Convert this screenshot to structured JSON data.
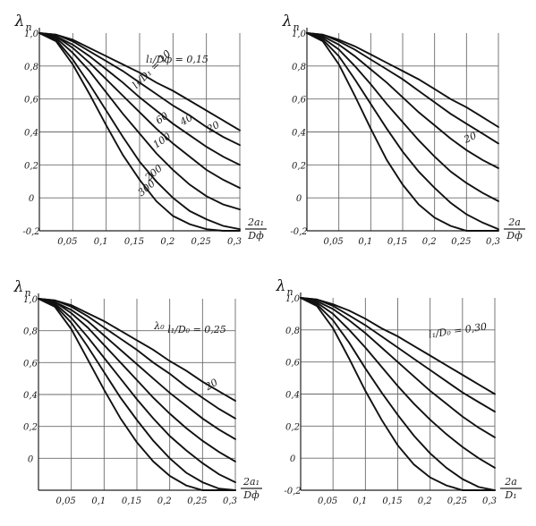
{
  "chart_data": [
    {
      "type": "line",
      "ylabel": "λ",
      "ylabel_sub": "п",
      "x_ticks": [
        "0,05",
        "0,1",
        "0,15",
        "0,2",
        "0,25",
        "0,3"
      ],
      "y_ticks": [
        "1,0",
        "0,8",
        "0,6",
        "0,4",
        "0,2",
        "0",
        "-0,2"
      ],
      "xlim": [
        0,
        0.3
      ],
      "ylim": [
        -0.2,
        1.0
      ],
      "grid": true,
      "xlabel_num": "2a₁",
      "xlabel_den": "Dф",
      "annotations": [
        "l₁/Dф = 0,15",
        "l₁/D₁ = 10",
        "20",
        "40",
        "60",
        "100",
        "200",
        "300"
      ],
      "series": [
        {
          "name": "10",
          "x": [
            0,
            0.025,
            0.05,
            0.075,
            0.1,
            0.125,
            0.15,
            0.175,
            0.2,
            0.225,
            0.25,
            0.275,
            0.3
          ],
          "y": [
            1.0,
            0.99,
            0.96,
            0.91,
            0.86,
            0.81,
            0.76,
            0.7,
            0.65,
            0.59,
            0.53,
            0.47,
            0.41
          ]
        },
        {
          "name": "20",
          "x": [
            0,
            0.025,
            0.05,
            0.075,
            0.1,
            0.125,
            0.15,
            0.175,
            0.2,
            0.225,
            0.25,
            0.275,
            0.3
          ],
          "y": [
            1.0,
            0.99,
            0.95,
            0.89,
            0.83,
            0.77,
            0.7,
            0.63,
            0.56,
            0.5,
            0.43,
            0.37,
            0.32
          ]
        },
        {
          "name": "40",
          "x": [
            0,
            0.025,
            0.05,
            0.075,
            0.1,
            0.125,
            0.15,
            0.175,
            0.2,
            0.225,
            0.25,
            0.275,
            0.3
          ],
          "y": [
            1.0,
            0.98,
            0.93,
            0.86,
            0.78,
            0.7,
            0.61,
            0.53,
            0.45,
            0.38,
            0.31,
            0.25,
            0.2
          ]
        },
        {
          "name": "60",
          "x": [
            0,
            0.025,
            0.05,
            0.075,
            0.1,
            0.125,
            0.15,
            0.175,
            0.2,
            0.225,
            0.25,
            0.275,
            0.3
          ],
          "y": [
            1.0,
            0.98,
            0.91,
            0.82,
            0.72,
            0.62,
            0.52,
            0.42,
            0.33,
            0.25,
            0.17,
            0.11,
            0.06
          ]
        },
        {
          "name": "100",
          "x": [
            0,
            0.025,
            0.05,
            0.075,
            0.1,
            0.125,
            0.15,
            0.175,
            0.2,
            0.225,
            0.25,
            0.275,
            0.3
          ],
          "y": [
            1.0,
            0.97,
            0.88,
            0.77,
            0.64,
            0.51,
            0.39,
            0.27,
            0.17,
            0.08,
            0.01,
            -0.04,
            -0.07
          ]
        },
        {
          "name": "200",
          "x": [
            0,
            0.025,
            0.05,
            0.075,
            0.1,
            0.125,
            0.15,
            0.175,
            0.2,
            0.225,
            0.25,
            0.275,
            0.3
          ],
          "y": [
            1.0,
            0.96,
            0.84,
            0.69,
            0.53,
            0.37,
            0.22,
            0.1,
            0.0,
            -0.08,
            -0.13,
            -0.17,
            -0.19
          ]
        },
        {
          "name": "300",
          "x": [
            0,
            0.025,
            0.05,
            0.075,
            0.1,
            0.125,
            0.15,
            0.175,
            0.2,
            0.225,
            0.25,
            0.275,
            0.3
          ],
          "y": [
            1.0,
            0.95,
            0.81,
            0.63,
            0.44,
            0.26,
            0.11,
            -0.02,
            -0.11,
            -0.16,
            -0.19,
            -0.2,
            -0.2
          ]
        }
      ]
    },
    {
      "type": "line",
      "ylabel": "λ",
      "ylabel_sub": "п",
      "x_ticks": [
        "0,05",
        "0,1",
        "0,15",
        "0,2",
        "0,25",
        "0,3"
      ],
      "y_ticks": [
        "1,0",
        "0,8",
        "0,6",
        "0,4",
        "0,2",
        "0",
        "-0,2"
      ],
      "xlim": [
        0,
        0.3
      ],
      "ylim": [
        -0.2,
        1.0
      ],
      "grid": true,
      "xlabel_num": "2a",
      "xlabel_den": "Dф",
      "annotations": [
        "20"
      ],
      "series": [
        {
          "x": [
            0,
            0.025,
            0.05,
            0.075,
            0.1,
            0.125,
            0.15,
            0.175,
            0.2,
            0.225,
            0.25,
            0.275,
            0.3
          ],
          "y": [
            1.0,
            0.99,
            0.96,
            0.92,
            0.87,
            0.82,
            0.77,
            0.72,
            0.66,
            0.6,
            0.55,
            0.49,
            0.43
          ]
        },
        {
          "x": [
            0,
            0.025,
            0.05,
            0.075,
            0.1,
            0.125,
            0.15,
            0.175,
            0.2,
            0.225,
            0.25,
            0.275,
            0.3
          ],
          "y": [
            1.0,
            0.99,
            0.95,
            0.9,
            0.84,
            0.78,
            0.72,
            0.65,
            0.58,
            0.51,
            0.45,
            0.39,
            0.33
          ]
        },
        {
          "x": [
            0,
            0.025,
            0.05,
            0.075,
            0.1,
            0.125,
            0.15,
            0.175,
            0.2,
            0.225,
            0.25,
            0.275,
            0.3
          ],
          "y": [
            1.0,
            0.98,
            0.93,
            0.86,
            0.78,
            0.7,
            0.61,
            0.52,
            0.44,
            0.36,
            0.29,
            0.23,
            0.18
          ]
        },
        {
          "x": [
            0,
            0.025,
            0.05,
            0.075,
            0.1,
            0.125,
            0.15,
            0.175,
            0.2,
            0.225,
            0.25,
            0.275,
            0.3
          ],
          "y": [
            1.0,
            0.97,
            0.9,
            0.8,
            0.69,
            0.57,
            0.46,
            0.35,
            0.25,
            0.16,
            0.09,
            0.03,
            -0.02
          ]
        },
        {
          "x": [
            0,
            0.025,
            0.05,
            0.075,
            0.1,
            0.125,
            0.15,
            0.175,
            0.2,
            0.225,
            0.25,
            0.275,
            0.3
          ],
          "y": [
            1.0,
            0.96,
            0.86,
            0.72,
            0.57,
            0.42,
            0.28,
            0.16,
            0.06,
            -0.03,
            -0.1,
            -0.15,
            -0.19
          ]
        },
        {
          "x": [
            0,
            0.025,
            0.05,
            0.075,
            0.1,
            0.125,
            0.15,
            0.175,
            0.2,
            0.225,
            0.25,
            0.275,
            0.3
          ],
          "y": [
            1.0,
            0.95,
            0.81,
            0.62,
            0.42,
            0.23,
            0.08,
            -0.04,
            -0.12,
            -0.17,
            -0.2,
            -0.2,
            -0.2
          ]
        }
      ]
    },
    {
      "type": "line",
      "ylabel": "λ",
      "ylabel_sub": "п",
      "x_ticks": [
        "0,05",
        "0,1",
        "0,15",
        "0,2",
        "0,25",
        "0,3"
      ],
      "y_ticks": [
        "1,0",
        "0,8",
        "0,6",
        "0,4",
        "0,2",
        "0"
      ],
      "xlim": [
        0,
        0.3
      ],
      "ylim": [
        -0.2,
        1.0
      ],
      "grid": true,
      "xlabel_num": "2a₁",
      "xlabel_den": "Dф",
      "annotations": [
        "l₁/D₀ = 0,25",
        "λ₀",
        "20"
      ],
      "series": [
        {
          "x": [
            0,
            0.025,
            0.05,
            0.075,
            0.1,
            0.125,
            0.15,
            0.175,
            0.2,
            0.225,
            0.25,
            0.275,
            0.3
          ],
          "y": [
            1.0,
            0.99,
            0.96,
            0.91,
            0.86,
            0.8,
            0.74,
            0.68,
            0.61,
            0.55,
            0.48,
            0.42,
            0.36
          ]
        },
        {
          "x": [
            0,
            0.025,
            0.05,
            0.075,
            0.1,
            0.125,
            0.15,
            0.175,
            0.2,
            0.225,
            0.25,
            0.275,
            0.3
          ],
          "y": [
            1.0,
            0.99,
            0.95,
            0.89,
            0.82,
            0.75,
            0.68,
            0.6,
            0.53,
            0.45,
            0.38,
            0.31,
            0.25
          ]
        },
        {
          "x": [
            0,
            0.025,
            0.05,
            0.075,
            0.1,
            0.125,
            0.15,
            0.175,
            0.2,
            0.225,
            0.25,
            0.275,
            0.3
          ],
          "y": [
            1.0,
            0.98,
            0.93,
            0.86,
            0.77,
            0.68,
            0.59,
            0.5,
            0.41,
            0.33,
            0.25,
            0.18,
            0.12
          ]
        },
        {
          "x": [
            0,
            0.025,
            0.05,
            0.075,
            0.1,
            0.125,
            0.15,
            0.175,
            0.2,
            0.225,
            0.25,
            0.275,
            0.3
          ],
          "y": [
            1.0,
            0.98,
            0.91,
            0.82,
            0.71,
            0.6,
            0.49,
            0.38,
            0.28,
            0.19,
            0.11,
            0.04,
            -0.02
          ]
        },
        {
          "x": [
            0,
            0.025,
            0.05,
            0.075,
            0.1,
            0.125,
            0.15,
            0.175,
            0.2,
            0.225,
            0.25,
            0.275,
            0.3
          ],
          "y": [
            1.0,
            0.97,
            0.88,
            0.76,
            0.63,
            0.5,
            0.37,
            0.25,
            0.14,
            0.05,
            -0.03,
            -0.1,
            -0.15
          ]
        },
        {
          "x": [
            0,
            0.025,
            0.05,
            0.075,
            0.1,
            0.125,
            0.15,
            0.175,
            0.2,
            0.225,
            0.25,
            0.275,
            0.3
          ],
          "y": [
            1.0,
            0.96,
            0.85,
            0.7,
            0.54,
            0.38,
            0.24,
            0.11,
            0.0,
            -0.09,
            -0.15,
            -0.19,
            -0.2
          ]
        },
        {
          "x": [
            0,
            0.025,
            0.05,
            0.075,
            0.1,
            0.125,
            0.15,
            0.175,
            0.2,
            0.225,
            0.25,
            0.275,
            0.3
          ],
          "y": [
            1.0,
            0.95,
            0.81,
            0.62,
            0.43,
            0.25,
            0.1,
            -0.02,
            -0.11,
            -0.17,
            -0.2,
            -0.2,
            -0.2
          ]
        }
      ]
    },
    {
      "type": "line",
      "ylabel": "λ",
      "ylabel_sub": "п",
      "x_ticks": [
        "0,05",
        "0,1",
        "0,15",
        "0,2",
        "0,25",
        "0,3"
      ],
      "y_ticks": [
        "1,0",
        "0,8",
        "0,6",
        "0,4",
        "0,2",
        "0",
        "-0,2"
      ],
      "xlim": [
        0,
        0.3
      ],
      "ylim": [
        -0.2,
        1.0
      ],
      "grid": true,
      "xlabel_num": "2a",
      "xlabel_den": "D₁",
      "annotations": [
        "l₁/D₀ = 0,30"
      ],
      "series": [
        {
          "x": [
            0,
            0.025,
            0.05,
            0.075,
            0.1,
            0.125,
            0.15,
            0.175,
            0.2,
            0.225,
            0.25,
            0.275,
            0.3
          ],
          "y": [
            1.0,
            0.99,
            0.96,
            0.92,
            0.87,
            0.81,
            0.76,
            0.7,
            0.64,
            0.58,
            0.52,
            0.46,
            0.4
          ]
        },
        {
          "x": [
            0,
            0.025,
            0.05,
            0.075,
            0.1,
            0.125,
            0.15,
            0.175,
            0.2,
            0.225,
            0.25,
            0.275,
            0.3
          ],
          "y": [
            1.0,
            0.99,
            0.95,
            0.89,
            0.83,
            0.76,
            0.69,
            0.62,
            0.55,
            0.48,
            0.41,
            0.35,
            0.29
          ]
        },
        {
          "x": [
            0,
            0.025,
            0.05,
            0.075,
            0.1,
            0.125,
            0.15,
            0.175,
            0.2,
            0.225,
            0.25,
            0.275,
            0.3
          ],
          "y": [
            1.0,
            0.98,
            0.93,
            0.86,
            0.78,
            0.69,
            0.6,
            0.51,
            0.42,
            0.34,
            0.26,
            0.19,
            0.13
          ]
        },
        {
          "x": [
            0,
            0.025,
            0.05,
            0.075,
            0.1,
            0.125,
            0.15,
            0.175,
            0.2,
            0.225,
            0.25,
            0.275,
            0.3
          ],
          "y": [
            1.0,
            0.97,
            0.9,
            0.8,
            0.69,
            0.57,
            0.45,
            0.34,
            0.24,
            0.15,
            0.07,
            0.0,
            -0.06
          ]
        },
        {
          "x": [
            0,
            0.025,
            0.05,
            0.075,
            0.1,
            0.125,
            0.15,
            0.175,
            0.2,
            0.225,
            0.25,
            0.275,
            0.3
          ],
          "y": [
            1.0,
            0.96,
            0.86,
            0.72,
            0.56,
            0.41,
            0.27,
            0.14,
            0.03,
            -0.06,
            -0.13,
            -0.18,
            -0.2
          ]
        },
        {
          "x": [
            0,
            0.025,
            0.05,
            0.075,
            0.1,
            0.125,
            0.15,
            0.175,
            0.2,
            0.225,
            0.25,
            0.275,
            0.3
          ],
          "y": [
            1.0,
            0.95,
            0.81,
            0.62,
            0.42,
            0.24,
            0.08,
            -0.04,
            -0.12,
            -0.17,
            -0.2,
            -0.2,
            -0.2
          ]
        }
      ]
    }
  ]
}
